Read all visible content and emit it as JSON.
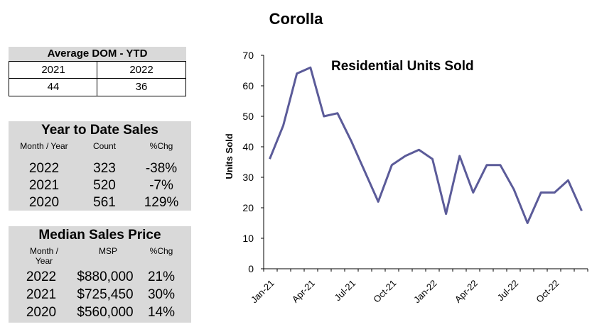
{
  "page_title": "Corolla",
  "dom_table": {
    "title": "Average DOM - YTD",
    "years": [
      "2021",
      "2022"
    ],
    "values": [
      "44",
      "36"
    ]
  },
  "ytd_sales": {
    "title": "Year to Date Sales",
    "columns": [
      "Month / Year",
      "Count",
      "%Chg"
    ],
    "rows": [
      {
        "year": "2022",
        "count": "323",
        "chg": "-38%"
      },
      {
        "year": "2021",
        "count": "520",
        "chg": "-7%"
      },
      {
        "year": "2020",
        "count": "561",
        "chg": "129%"
      }
    ]
  },
  "median_price": {
    "title": "Median Sales Price",
    "columns": [
      "Month /\nYear",
      "MSP",
      "%Chg"
    ],
    "rows": [
      {
        "year": "2022",
        "price": "$880,000",
        "chg": "21%"
      },
      {
        "year": "2021",
        "price": "$725,450",
        "chg": "30%"
      },
      {
        "year": "2020",
        "price": "$560,000",
        "chg": "14%"
      }
    ]
  },
  "colors": {
    "line": "#5b5b99",
    "panel_bg": "#d9d9d9"
  },
  "chart_data": {
    "type": "line",
    "title": "Residential Units Sold",
    "xlabel": "",
    "ylabel": "Units Sold",
    "ylim": [
      0,
      70
    ],
    "yticks": [
      0,
      10,
      20,
      30,
      40,
      50,
      60,
      70
    ],
    "grid": false,
    "x": [
      "Jan-21",
      "Feb-21",
      "Mar-21",
      "Apr-21",
      "May-21",
      "Jun-21",
      "Jul-21",
      "Aug-21",
      "Sep-21",
      "Oct-21",
      "Nov-21",
      "Dec-21",
      "Jan-22",
      "Feb-22",
      "Mar-22",
      "Apr-22",
      "May-22",
      "Jun-22",
      "Jul-22",
      "Aug-22",
      "Sep-22",
      "Oct-22",
      "Nov-22",
      "Dec-22"
    ],
    "tick_labels": [
      "Jan-21",
      "Apr-21",
      "Jul-21",
      "Oct-21",
      "Jan-22",
      "Apr-22",
      "Jul-22",
      "Oct-22"
    ],
    "series": [
      {
        "name": "Residential Units Sold",
        "values": [
          36,
          47,
          64,
          66,
          50,
          51,
          42,
          32,
          22,
          34,
          37,
          39,
          36,
          18,
          37,
          25,
          34,
          34,
          26,
          15,
          25,
          25,
          29,
          19
        ]
      }
    ]
  }
}
